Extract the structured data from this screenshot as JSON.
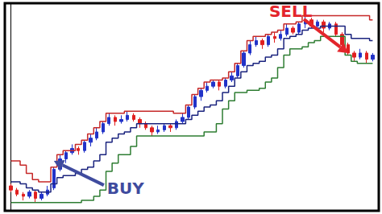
{
  "chart_data": {
    "type": "candlestick",
    "x": [
      0,
      1,
      2,
      3,
      4,
      5,
      6,
      7,
      8,
      9,
      10,
      11,
      12,
      13,
      14,
      15,
      16,
      17,
      18,
      19,
      20,
      21,
      22,
      23,
      24,
      25,
      26,
      27,
      28,
      29,
      30,
      31,
      32,
      33,
      34,
      35,
      36,
      37,
      38,
      39,
      40,
      41,
      42,
      43,
      44,
      45,
      46,
      47,
      48,
      49,
      50,
      51,
      52,
      53,
      54,
      55,
      56,
      57,
      58,
      59
    ],
    "xlim": [
      -1,
      60
    ],
    "ylim": [
      0,
      100
    ],
    "grid": false,
    "tick_labels": false,
    "series": [
      {
        "type": "candlestick",
        "color": "#2233c8",
        "values": [
          [
            12,
            10,
            9,
            13
          ],
          [
            10,
            8,
            7,
            11
          ],
          [
            8,
            7,
            5,
            9
          ],
          [
            7,
            9,
            6,
            10
          ],
          [
            9,
            6,
            4,
            10
          ],
          [
            6,
            8,
            5,
            9
          ],
          [
            8,
            10,
            7,
            12
          ],
          [
            11,
            20,
            10,
            21
          ],
          [
            20,
            25,
            19,
            27
          ],
          [
            25,
            28,
            23,
            29
          ],
          [
            28,
            30,
            27,
            32
          ],
          [
            30,
            29,
            27,
            31
          ],
          [
            29,
            33,
            28,
            34
          ],
          [
            33,
            35,
            31,
            37
          ],
          [
            35,
            38,
            34,
            40
          ],
          [
            38,
            42,
            37,
            43
          ],
          [
            42,
            45,
            41,
            47
          ],
          [
            45,
            43,
            41,
            46
          ],
          [
            43,
            44,
            42,
            46
          ],
          [
            44,
            46,
            43,
            48
          ],
          [
            46,
            44,
            43,
            47
          ],
          [
            44,
            42,
            40,
            45
          ],
          [
            42,
            40,
            39,
            43
          ],
          [
            40,
            38,
            36,
            41
          ],
          [
            38,
            39,
            37,
            41
          ],
          [
            39,
            41,
            38,
            42
          ],
          [
            41,
            40,
            38,
            42
          ],
          [
            40,
            43,
            39,
            44
          ],
          [
            43,
            45,
            42,
            47
          ],
          [
            45,
            50,
            44,
            51
          ],
          [
            50,
            55,
            49,
            56
          ],
          [
            55,
            58,
            53,
            59
          ],
          [
            58,
            60,
            57,
            62
          ],
          [
            60,
            62,
            59,
            63
          ],
          [
            62,
            60,
            58,
            63
          ],
          [
            60,
            63,
            59,
            64
          ],
          [
            63,
            65,
            62,
            67
          ],
          [
            65,
            70,
            64,
            71
          ],
          [
            70,
            76,
            69,
            77
          ],
          [
            76,
            80,
            75,
            82
          ],
          [
            80,
            82,
            79,
            84
          ],
          [
            82,
            80,
            78,
            83
          ],
          [
            80,
            84,
            79,
            85
          ],
          [
            84,
            83,
            81,
            86
          ],
          [
            83,
            85,
            82,
            87
          ],
          [
            85,
            88,
            84,
            90
          ],
          [
            88,
            86,
            85,
            89
          ],
          [
            86,
            90,
            85,
            91
          ],
          [
            90,
            92,
            88,
            94
          ],
          [
            92,
            89,
            88,
            93
          ],
          [
            89,
            91,
            87,
            92
          ],
          [
            91,
            88,
            86,
            92
          ],
          [
            88,
            90,
            87,
            91
          ],
          [
            90,
            85,
            84,
            91
          ],
          [
            85,
            80,
            79,
            86
          ],
          [
            80,
            76,
            75,
            81
          ],
          [
            76,
            74,
            72,
            77
          ],
          [
            74,
            76,
            73,
            78
          ],
          [
            76,
            73,
            71,
            77
          ],
          [
            73,
            75,
            72,
            76
          ]
        ]
      },
      {
        "type": "line",
        "color": "#c62828",
        "line_style": "step",
        "values": [
          24,
          24,
          22,
          18,
          15,
          14,
          14,
          21,
          27,
          29,
          29,
          32,
          34,
          37,
          40,
          43,
          47,
          47,
          47,
          48,
          48,
          48,
          48,
          48,
          48,
          48,
          48,
          47,
          47,
          51,
          56,
          59,
          62,
          63,
          63,
          64,
          67,
          71,
          77,
          82,
          84,
          84,
          85,
          86,
          87,
          90,
          90,
          91,
          94,
          94,
          94,
          94,
          94,
          94,
          94,
          94,
          94,
          94,
          94,
          92
        ]
      },
      {
        "type": "line",
        "color": "#1a237e",
        "line_style": "step",
        "values": [
          14,
          14,
          13,
          11,
          10,
          9,
          9,
          13,
          16,
          17,
          17,
          18,
          20,
          21,
          24,
          27,
          33,
          35,
          37,
          38,
          40,
          42,
          42,
          42,
          42,
          42,
          42,
          42,
          42,
          44,
          46,
          48,
          50,
          51,
          53,
          57,
          60,
          64,
          67,
          70,
          71,
          72,
          74,
          75,
          78,
          83,
          84,
          85,
          87,
          88,
          88,
          89,
          89,
          89,
          89,
          85,
          83,
          83,
          83,
          82
        ]
      },
      {
        "type": "line",
        "color": "#2e7d32",
        "line_style": "step",
        "values": [
          4,
          4,
          4,
          4,
          4,
          4,
          4,
          4,
          4,
          4,
          4,
          4,
          5,
          5,
          7,
          10,
          19,
          23,
          27,
          27,
          31,
          36,
          36,
          36,
          36,
          36,
          36,
          36,
          36,
          36,
          36,
          36,
          38,
          38,
          42,
          49,
          53,
          57,
          57,
          58,
          58,
          59,
          62,
          64,
          69,
          75,
          78,
          78,
          79,
          81,
          82,
          84,
          84,
          84,
          84,
          75,
          72,
          71,
          71,
          71
        ]
      }
    ],
    "annotations": [
      {
        "text": "BUY",
        "x": 7,
        "y": 24,
        "color": "#3f4b9e"
      },
      {
        "text": "SELL",
        "x": 55,
        "y": 76,
        "color": "#e3262c"
      }
    ]
  }
}
